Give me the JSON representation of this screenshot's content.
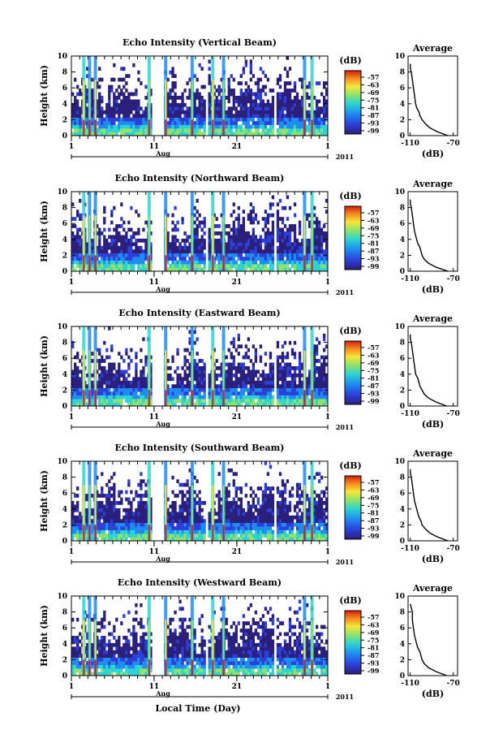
{
  "chart_data": [
    {
      "type": "heatmap",
      "title": "Echo Intensity (Vertical Beam)",
      "ylabel": "Height (km)",
      "ylim": [
        0,
        10
      ],
      "yticks": [
        "0",
        "2",
        "4",
        "6",
        "8",
        "10"
      ],
      "xticks": [
        "1",
        "11",
        "21",
        "1"
      ],
      "month": "Aug",
      "year": "2011",
      "colorbar": {
        "unit": "(dB)",
        "ticks": [
          "-57",
          "-63",
          "-69",
          "-75",
          "-81",
          "-87",
          "-93",
          "-99"
        ]
      },
      "profile": {
        "title": "Average",
        "xlabel": "(dB)",
        "xticks": [
          "-110",
          "-70"
        ],
        "yticks": [
          "0",
          "2",
          "4",
          "6",
          "8",
          "10"
        ],
        "heights": [
          0,
          0.5,
          1,
          1.5,
          2,
          2.5,
          3,
          3.5,
          4,
          5,
          6,
          7,
          8,
          8.5,
          9
        ],
        "values": [
          -75,
          -85,
          -92,
          -96,
          -99,
          -101,
          -102,
          -104,
          -105,
          -106,
          -107,
          -108,
          -109,
          -110,
          -110
        ]
      }
    },
    {
      "type": "heatmap",
      "title": "Echo Intensity (Northward Beam)",
      "ylabel": "Height (km)",
      "ylim": [
        0,
        10
      ],
      "yticks": [
        "0",
        "2",
        "4",
        "6",
        "8",
        "10"
      ],
      "xticks": [
        "1",
        "11",
        "21",
        "1"
      ],
      "month": "Aug",
      "year": "2011",
      "colorbar": {
        "unit": "(dB)",
        "ticks": [
          "-57",
          "-63",
          "-69",
          "-75",
          "-81",
          "-87",
          "-93",
          "-99"
        ]
      },
      "profile": {
        "title": "Average",
        "xlabel": "(dB)",
        "xticks": [
          "-110",
          "-70"
        ],
        "yticks": [
          "0",
          "2",
          "4",
          "6",
          "8",
          "10"
        ],
        "heights": [
          0,
          0.5,
          1,
          1.5,
          2,
          2.5,
          3,
          3.5,
          4,
          5,
          6,
          7,
          8,
          8.5,
          9
        ],
        "values": [
          -75,
          -86,
          -93,
          -97,
          -99,
          -100,
          -101,
          -103,
          -104,
          -106,
          -107,
          -108,
          -109,
          -110,
          -110
        ]
      }
    },
    {
      "type": "heatmap",
      "title": "Echo Intensity (Eastward Beam)",
      "ylabel": "Height (km)",
      "ylim": [
        0,
        10
      ],
      "yticks": [
        "0",
        "2",
        "4",
        "6",
        "8",
        "10"
      ],
      "xticks": [
        "1",
        "11",
        "21",
        "1"
      ],
      "month": "Aug",
      "year": "2011",
      "colorbar": {
        "unit": "(dB)",
        "ticks": [
          "-57",
          "-63",
          "-69",
          "-75",
          "-81",
          "-87",
          "-93",
          "-99"
        ]
      },
      "profile": {
        "title": "Average",
        "xlabel": "(dB)",
        "xticks": [
          "-110",
          "-70"
        ],
        "yticks": [
          "0",
          "2",
          "4",
          "6",
          "8",
          "10"
        ],
        "heights": [
          0,
          0.5,
          1,
          1.5,
          2,
          2.5,
          3,
          3.5,
          4,
          5,
          6,
          7,
          8,
          8.5,
          9
        ],
        "values": [
          -76,
          -86,
          -93,
          -97,
          -99,
          -101,
          -102,
          -103,
          -105,
          -106,
          -107,
          -108,
          -109,
          -110,
          -110
        ]
      }
    },
    {
      "type": "heatmap",
      "title": "Echo Intensity (Southward Beam)",
      "ylabel": "Height (km)",
      "ylim": [
        0,
        10
      ],
      "yticks": [
        "0",
        "2",
        "4",
        "6",
        "8",
        "10"
      ],
      "xticks": [
        "1",
        "11",
        "21",
        "1"
      ],
      "month": "Aug",
      "year": "2011",
      "colorbar": {
        "unit": "(dB)",
        "ticks": [
          "-57",
          "-63",
          "-69",
          "-75",
          "-81",
          "-87",
          "-93",
          "-99"
        ]
      },
      "profile": {
        "title": "Average",
        "xlabel": "(dB)",
        "xticks": [
          "-110",
          "-70"
        ],
        "yticks": [
          "0",
          "2",
          "4",
          "6",
          "8",
          "10"
        ],
        "heights": [
          0,
          0.5,
          1,
          1.5,
          2,
          2.5,
          3,
          3.5,
          4,
          5,
          6,
          7,
          8,
          8.5,
          9
        ],
        "values": [
          -75,
          -85,
          -92,
          -96,
          -99,
          -100,
          -102,
          -103,
          -104,
          -106,
          -107,
          -108,
          -109,
          -110,
          -110
        ]
      }
    },
    {
      "type": "heatmap",
      "title": "Echo Intensity (Westward Beam)",
      "ylabel": "Height (km)",
      "ylim": [
        0,
        10
      ],
      "yticks": [
        "0",
        "2",
        "4",
        "6",
        "8",
        "10"
      ],
      "xticks": [
        "1",
        "11",
        "21",
        "1"
      ],
      "month": "Aug",
      "year": "2011",
      "xlabel": "Local Time (Day)",
      "colorbar": {
        "unit": "(dB)",
        "ticks": [
          "-57",
          "-63",
          "-69",
          "-75",
          "-81",
          "-87",
          "-93",
          "-99"
        ]
      },
      "profile": {
        "title": "Average",
        "xlabel": "(dB)",
        "xticks": [
          "-110",
          "-70"
        ],
        "yticks": [
          "0",
          "2",
          "4",
          "6",
          "8",
          "10"
        ],
        "heights": [
          0,
          0.5,
          1,
          1.5,
          2,
          2.5,
          3,
          3.5,
          4,
          5,
          6,
          7,
          8,
          8.5,
          9
        ],
        "values": [
          -76,
          -86,
          -93,
          -97,
          -99,
          -100,
          -101,
          -103,
          -104,
          -106,
          -107,
          -108,
          -108,
          -109,
          -110
        ]
      }
    }
  ]
}
